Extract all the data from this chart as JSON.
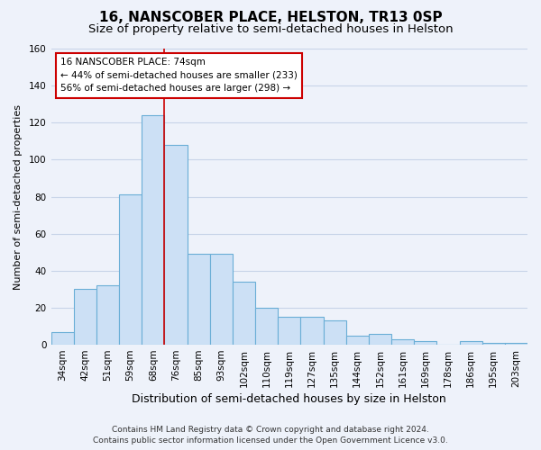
{
  "title": "16, NANSCOBER PLACE, HELSTON, TR13 0SP",
  "subtitle": "Size of property relative to semi-detached houses in Helston",
  "xlabel": "Distribution of semi-detached houses by size in Helston",
  "ylabel": "Number of semi-detached properties",
  "categories": [
    "34sqm",
    "42sqm",
    "51sqm",
    "59sqm",
    "68sqm",
    "76sqm",
    "85sqm",
    "93sqm",
    "102sqm",
    "110sqm",
    "119sqm",
    "127sqm",
    "135sqm",
    "144sqm",
    "152sqm",
    "161sqm",
    "169sqm",
    "178sqm",
    "186sqm",
    "195sqm",
    "203sqm"
  ],
  "values": [
    7,
    30,
    32,
    81,
    124,
    108,
    49,
    49,
    34,
    20,
    15,
    15,
    13,
    5,
    6,
    3,
    2,
    0,
    2,
    1,
    1
  ],
  "bar_color": "#cce0f5",
  "bar_edge_color": "#6aaed6",
  "vline_color": "#cc0000",
  "vline_x_index": 5,
  "annotation_text": "16 NANSCOBER PLACE: 74sqm\n← 44% of semi-detached houses are smaller (233)\n56% of semi-detached houses are larger (298) →",
  "annotation_box_color": "#ffffff",
  "annotation_box_edge": "#cc0000",
  "ylim": [
    0,
    160
  ],
  "yticks": [
    0,
    20,
    40,
    60,
    80,
    100,
    120,
    140,
    160
  ],
  "footer_line1": "Contains HM Land Registry data © Crown copyright and database right 2024.",
  "footer_line2": "Contains public sector information licensed under the Open Government Licence v3.0.",
  "title_fontsize": 11,
  "subtitle_fontsize": 9.5,
  "xlabel_fontsize": 9,
  "ylabel_fontsize": 8,
  "tick_fontsize": 7.5,
  "annotation_fontsize": 7.5,
  "footer_fontsize": 6.5,
  "background_color": "#eef2fa",
  "grid_color": "#c8d4e8"
}
